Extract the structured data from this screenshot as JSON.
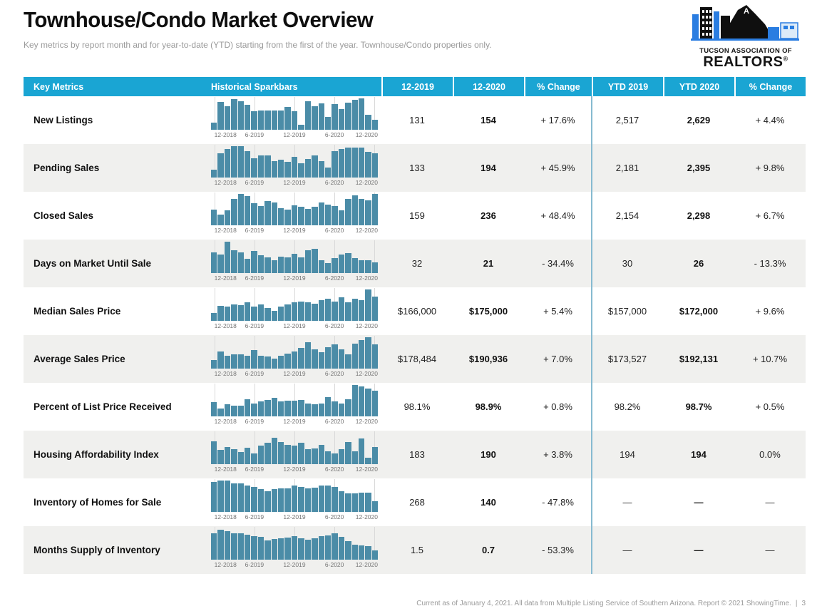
{
  "page": {
    "title": "Townhouse/Condo Market Overview",
    "subtitle": "Key metrics by report month and for year-to-date (YTD) starting from the first of the year. Townhouse/Condo properties only.",
    "footer": "Current as of January 4, 2021. All data from Multiple Listing Service of Southern Arizona. Report © 2021 ShowingTime.",
    "page_number": "3"
  },
  "logo": {
    "org_line1": "TUCSON ASSOCIATION OF",
    "org_line2": "REALTORS",
    "registered_mark": "®"
  },
  "colors": {
    "header_bg": "#1aa5d3",
    "bar": "#4b8ca7",
    "row_alt": "#f0f0ee",
    "divider": "#86bad0",
    "logo_blue": "#2a7de1"
  },
  "table": {
    "headers": [
      "Key Metrics",
      "Historical Sparkbars",
      "12-2019",
      "12-2020",
      "% Change",
      "YTD 2019",
      "YTD 2020",
      "% Change"
    ],
    "spark_axis": [
      "12-2018",
      "6-2019",
      "12-2019",
      "6-2020",
      "12-2020"
    ],
    "rows": [
      {
        "metric": "New Listings",
        "spark": [
          22,
          88,
          75,
          97,
          92,
          80,
          58,
          62,
          62,
          62,
          62,
          72,
          58,
          15,
          92,
          75,
          85,
          42,
          82,
          67,
          87,
          95,
          100,
          48,
          32
        ],
        "m_prev": "131",
        "m_curr": "154",
        "m_change": "+ 17.6%",
        "ytd_prev": "2,517",
        "ytd_curr": "2,629",
        "ytd_change": "+ 4.4%"
      },
      {
        "metric": "Pending Sales",
        "spark": [
          25,
          78,
          92,
          100,
          100,
          84,
          62,
          70,
          70,
          52,
          56,
          50,
          66,
          45,
          60,
          70,
          52,
          32,
          85,
          92,
          96,
          96,
          96,
          82,
          78
        ],
        "m_prev": "133",
        "m_curr": "194",
        "m_change": "+ 45.9%",
        "ytd_prev": "2,181",
        "ytd_curr": "2,395",
        "ytd_change": "+ 9.8%"
      },
      {
        "metric": "Closed Sales",
        "spark": [
          50,
          33,
          48,
          85,
          100,
          93,
          70,
          62,
          78,
          72,
          55,
          50,
          63,
          58,
          52,
          60,
          72,
          67,
          62,
          48,
          85,
          95,
          85,
          80,
          100
        ],
        "m_prev": "159",
        "m_curr": "236",
        "m_change": "+ 48.4%",
        "ytd_prev": "2,154",
        "ytd_curr": "2,298",
        "ytd_change": "+ 6.7%"
      },
      {
        "metric": "Days on Market Until Sale",
        "spark": [
          65,
          60,
          100,
          72,
          65,
          45,
          70,
          57,
          50,
          42,
          52,
          50,
          62,
          50,
          72,
          78,
          42,
          32,
          48,
          58,
          63,
          48,
          40,
          42,
          33
        ],
        "m_prev": "32",
        "m_curr": "21",
        "m_change": "- 34.4%",
        "ytd_prev": "30",
        "ytd_curr": "26",
        "ytd_change": "- 13.3%"
      },
      {
        "metric": "Median Sales Price",
        "spark": [
          25,
          48,
          45,
          52,
          50,
          58,
          45,
          52,
          42,
          32,
          45,
          52,
          58,
          62,
          58,
          55,
          65,
          70,
          62,
          75,
          58,
          70,
          67,
          100,
          78
        ],
        "m_prev": "$166,000",
        "m_curr": "$175,000",
        "m_change": "+ 5.4%",
        "ytd_prev": "$157,000",
        "ytd_curr": "$172,000",
        "ytd_change": "+ 9.6%"
      },
      {
        "metric": "Average Sales Price",
        "spark": [
          28,
          55,
          42,
          45,
          45,
          42,
          58,
          40,
          38,
          32,
          42,
          48,
          55,
          65,
          85,
          62,
          52,
          68,
          78,
          62,
          45,
          80,
          92,
          100,
          78
        ],
        "m_prev": "$178,484",
        "m_curr": "$190,936",
        "m_change": "+ 7.0%",
        "ytd_prev": "$173,527",
        "ytd_curr": "$192,131",
        "ytd_change": "+ 10.7%"
      },
      {
        "metric": "Percent of List Price Received",
        "spark": [
          45,
          25,
          38,
          35,
          35,
          55,
          42,
          48,
          52,
          58,
          48,
          50,
          50,
          52,
          42,
          38,
          40,
          62,
          48,
          42,
          55,
          100,
          95,
          88,
          82
        ],
        "m_prev": "98.1%",
        "m_curr": "98.9%",
        "m_change": "+ 0.8%",
        "ytd_prev": "98.2%",
        "ytd_curr": "98.7%",
        "ytd_change": "+ 0.5%"
      },
      {
        "metric": "Housing Affordability Index",
        "spark": [
          72,
          45,
          55,
          48,
          38,
          52,
          35,
          58,
          68,
          85,
          70,
          62,
          58,
          68,
          48,
          50,
          62,
          42,
          35,
          48,
          70,
          42,
          82,
          20,
          55
        ],
        "m_prev": "183",
        "m_curr": "190",
        "m_change": "+ 3.8%",
        "ytd_prev": "194",
        "ytd_curr": "194",
        "ytd_change": "0.0%"
      },
      {
        "metric": "Inventory of Homes for Sale",
        "spark": [
          95,
          100,
          100,
          92,
          90,
          85,
          80,
          72,
          66,
          72,
          75,
          75,
          85,
          80,
          75,
          78,
          85,
          85,
          80,
          65,
          60,
          58,
          62,
          62,
          35
        ],
        "m_prev": "268",
        "m_curr": "140",
        "m_change": "- 47.8%",
        "ytd_prev": "—",
        "ytd_curr": "—",
        "ytd_change": "—"
      },
      {
        "metric": "Months Supply of Inventory",
        "spark": [
          85,
          95,
          92,
          85,
          83,
          80,
          75,
          72,
          62,
          66,
          68,
          70,
          74,
          68,
          63,
          68,
          74,
          78,
          83,
          72,
          58,
          48,
          45,
          43,
          30
        ],
        "m_prev": "1.5",
        "m_curr": "0.7",
        "m_change": "- 53.3%",
        "ytd_prev": "—",
        "ytd_curr": "—",
        "ytd_change": "—"
      }
    ]
  }
}
